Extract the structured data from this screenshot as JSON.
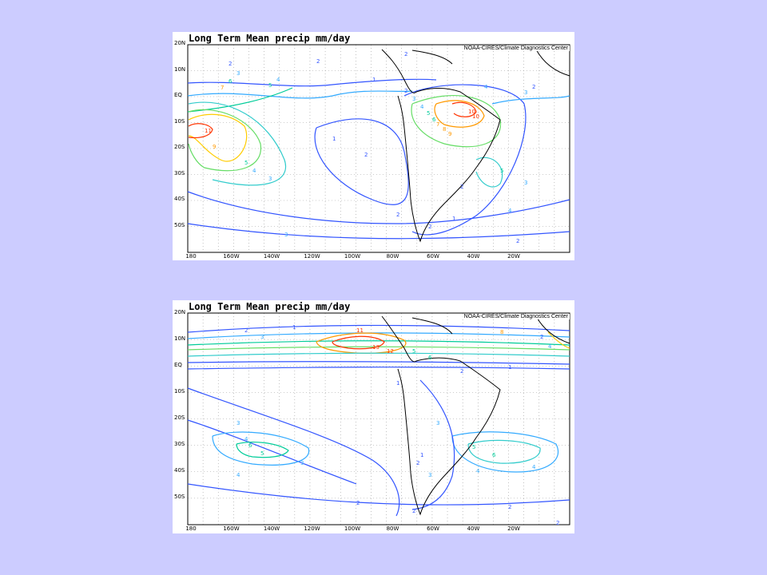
{
  "panels": [
    {
      "title": "Long Term Mean precip mm/day",
      "credit": "NOAA-CIRES/Climate Diagnostics Center",
      "lat_ticks": [
        "20N",
        "10N",
        "EQ",
        "10S",
        "20S",
        "30S",
        "40S",
        "50S"
      ],
      "lon_ticks": [
        "180",
        "160W",
        "140W",
        "120W",
        "100W",
        "80W",
        "60W",
        "40W",
        "20W"
      ],
      "contour_labels": [
        "2",
        "2",
        "2",
        "3",
        "4",
        "5",
        "6",
        "7",
        "1",
        "2",
        "3",
        "4",
        "5",
        "6",
        "7",
        "8",
        "9",
        "10",
        "11",
        "1",
        "2",
        "3",
        "4",
        "5",
        "10",
        "2",
        "3",
        "4",
        "5",
        "9",
        "2",
        "3",
        "4",
        "1",
        "2",
        "2",
        "3",
        "2"
      ]
    },
    {
      "title": "Long Term Mean precip mm/day",
      "credit": "NOAA-CIRES/Climate Diagnostics Center",
      "lat_ticks": [
        "20N",
        "10N",
        "EQ",
        "10S",
        "20S",
        "30S",
        "40S",
        "50S"
      ],
      "lon_ticks": [
        "180",
        "160W",
        "140W",
        "120W",
        "100W",
        "80W",
        "60W",
        "40W",
        "20W"
      ],
      "contour_labels": [
        "2",
        "1",
        "3",
        "11",
        "13",
        "12",
        "5",
        "6",
        "8",
        "2",
        "1",
        "2",
        "4",
        "1",
        "3",
        "4",
        "5",
        "6",
        "3",
        "4",
        "2",
        "2",
        "1",
        "2",
        "4",
        "3",
        "5",
        "6",
        "4",
        "3",
        "2",
        "2"
      ]
    }
  ],
  "colors": {
    "background": "#ccccff",
    "map": "#ffffff",
    "grid": "#999999"
  }
}
